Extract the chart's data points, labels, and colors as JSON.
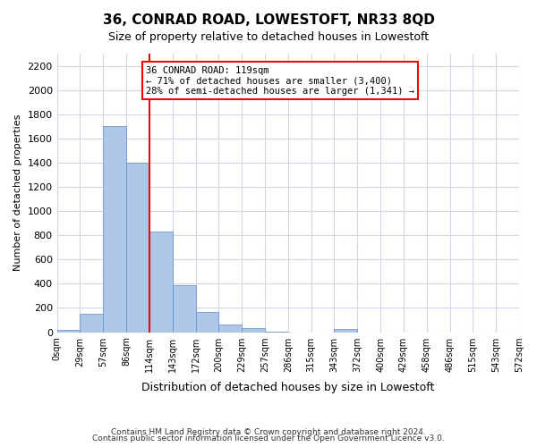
{
  "title": "36, CONRAD ROAD, LOWESTOFT, NR33 8QD",
  "subtitle": "Size of property relative to detached houses in Lowestoft",
  "xlabel": "Distribution of detached houses by size in Lowestoft",
  "ylabel": "Number of detached properties",
  "bin_labels": [
    "0sqm",
    "29sqm",
    "57sqm",
    "86sqm",
    "114sqm",
    "143sqm",
    "172sqm",
    "200sqm",
    "229sqm",
    "257sqm",
    "286sqm",
    "315sqm",
    "343sqm",
    "372sqm",
    "400sqm",
    "429sqm",
    "458sqm",
    "486sqm",
    "515sqm",
    "543sqm",
    "572sqm"
  ],
  "bar_values": [
    20,
    150,
    1700,
    1400,
    830,
    390,
    165,
    65,
    30,
    5,
    0,
    0,
    25,
    0,
    0,
    0,
    0,
    0,
    0,
    0
  ],
  "bar_color": "#aec6e8",
  "bar_edge_color": "#5a8fc0",
  "red_line_x": 4,
  "annotation_text": "36 CONRAD ROAD: 119sqm\n← 71% of detached houses are smaller (3,400)\n28% of semi-detached houses are larger (1,341) →",
  "ylim": [
    0,
    2300
  ],
  "yticks": [
    0,
    200,
    400,
    600,
    800,
    1000,
    1200,
    1400,
    1600,
    1800,
    2000,
    2200
  ],
  "footer1": "Contains HM Land Registry data © Crown copyright and database right 2024.",
  "footer2": "Contains public sector information licensed under the Open Government Licence v3.0.",
  "background_color": "#ffffff",
  "grid_color": "#d0d8e8"
}
